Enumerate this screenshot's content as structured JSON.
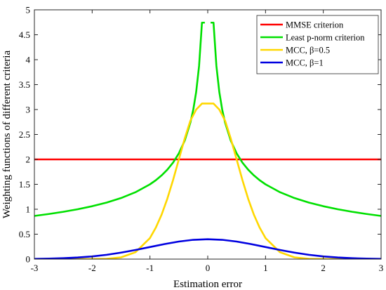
{
  "chart_data": {
    "type": "line",
    "title": "",
    "xlabel": "Estimation error",
    "ylabel": "Weighting functions of different criteria",
    "xlim": [
      -3,
      3
    ],
    "ylim": [
      0,
      5
    ],
    "xticks": [
      "-3",
      "-2",
      "-1",
      "0",
      "1",
      "2",
      "3"
    ],
    "yticks": [
      "0",
      "0.5",
      "1",
      "1.5",
      "2",
      "2.5",
      "3",
      "3.5",
      "4",
      "4.5",
      "5"
    ],
    "grid": false,
    "legend_position": "top-right",
    "series": [
      {
        "name": "MMSE criterion",
        "color": "#ff0000",
        "x": [
          -3,
          -2,
          -1,
          0,
          1,
          2,
          3
        ],
        "y": [
          2,
          2,
          2,
          2,
          2,
          2,
          2
        ]
      },
      {
        "name": "Least p-norm criterion",
        "color": "#00e000",
        "x": [
          -3,
          -2.75,
          -2.5,
          -2.25,
          -2,
          -1.75,
          -1.5,
          -1.25,
          -1,
          -0.9,
          -0.8,
          -0.7,
          -0.6,
          -0.5,
          -0.4,
          -0.3,
          -0.25,
          -0.2,
          -0.15,
          -0.1,
          -0.05,
          null,
          0.05,
          0.1,
          0.15,
          0.2,
          0.25,
          0.3,
          0.4,
          0.5,
          0.6,
          0.7,
          0.8,
          0.9,
          1,
          1.25,
          1.5,
          1.75,
          2,
          2.25,
          2.5,
          2.75,
          3
        ],
        "y": [
          0.866,
          0.905,
          0.949,
          1.0,
          1.061,
          1.134,
          1.225,
          1.342,
          1.5,
          1.581,
          1.677,
          1.793,
          1.936,
          2.121,
          2.372,
          2.739,
          3.0,
          3.354,
          3.873,
          4.743,
          4.743,
          null,
          4.743,
          4.743,
          3.873,
          3.354,
          3.0,
          2.739,
          2.372,
          2.121,
          1.936,
          1.793,
          1.677,
          1.581,
          1.5,
          1.342,
          1.225,
          1.134,
          1.061,
          1.0,
          0.949,
          0.905,
          0.866
        ]
      },
      {
        "name": "MCC, β=0.5",
        "color": "#ffd700",
        "x": [
          -3,
          -2.5,
          -2,
          -1.75,
          -1.5,
          -1.25,
          -1,
          -0.9,
          -0.8,
          -0.7,
          -0.6,
          -0.5,
          -0.4,
          -0.3,
          -0.2,
          -0.1,
          0,
          0.1,
          0.2,
          0.3,
          0.4,
          0.5,
          0.6,
          0.7,
          0.8,
          0.9,
          1,
          1.25,
          1.5,
          1.75,
          2,
          2.5,
          3
        ],
        "y": [
          0.0,
          0.0,
          0.001,
          0.007,
          0.035,
          0.138,
          0.422,
          0.628,
          0.887,
          1.209,
          1.587,
          2.0,
          2.413,
          2.777,
          3.0,
          3.12,
          3.12,
          3.12,
          3.0,
          2.777,
          2.413,
          2.0,
          1.587,
          1.209,
          0.887,
          0.628,
          0.422,
          0.138,
          0.035,
          0.007,
          0.001,
          0.0,
          0.0
        ]
      },
      {
        "name": "MCC, β=1",
        "color": "#0000e0",
        "x": [
          -3,
          -2.75,
          -2.5,
          -2.25,
          -2,
          -1.75,
          -1.5,
          -1.25,
          -1,
          -0.75,
          -0.5,
          -0.25,
          0,
          0.25,
          0.5,
          0.75,
          1,
          1.25,
          1.5,
          1.75,
          2,
          2.25,
          2.5,
          2.75,
          3
        ],
        "y": [
          0.004,
          0.009,
          0.018,
          0.032,
          0.054,
          0.086,
          0.13,
          0.183,
          0.242,
          0.301,
          0.352,
          0.387,
          0.399,
          0.387,
          0.352,
          0.301,
          0.242,
          0.183,
          0.13,
          0.086,
          0.054,
          0.032,
          0.018,
          0.009,
          0.004
        ]
      }
    ]
  }
}
